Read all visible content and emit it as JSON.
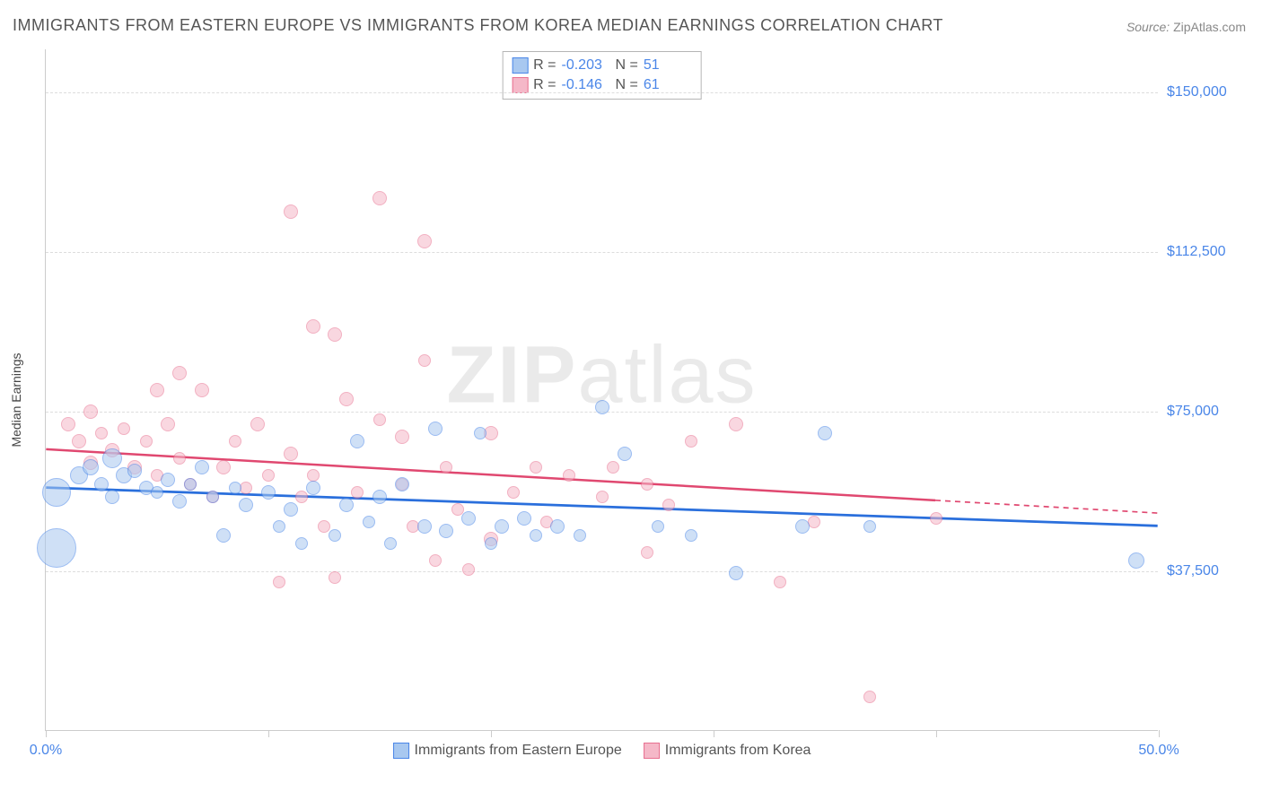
{
  "title": "IMMIGRANTS FROM EASTERN EUROPE VS IMMIGRANTS FROM KOREA MEDIAN EARNINGS CORRELATION CHART",
  "source_label": "Source:",
  "source_value": "ZipAtlas.com",
  "watermark": {
    "part1": "ZIP",
    "part2": "atlas"
  },
  "ylabel": "Median Earnings",
  "chart": {
    "type": "scatter",
    "xlim": [
      0,
      50
    ],
    "ylim": [
      0,
      160000
    ],
    "ytick_values": [
      37500,
      75000,
      112500,
      150000
    ],
    "ytick_labels": [
      "$37,500",
      "$75,000",
      "$112,500",
      "$150,000"
    ],
    "xtick_values": [
      0,
      10,
      20,
      30,
      40,
      50
    ],
    "xtick_labels": {
      "0": "0.0%",
      "50": "50.0%"
    },
    "background_color": "#ffffff",
    "grid_color": "#dddddd",
    "axis_color": "#cccccc",
    "tick_label_color": "#4a86e8"
  },
  "series": [
    {
      "name": "Immigrants from Eastern Europe",
      "fill_color": "#a8c8f0",
      "stroke_color": "#4a86e8",
      "opacity": 0.55,
      "r_label": "R =",
      "r_value": "-0.203",
      "n_label": "N =",
      "n_value": "51",
      "trend": {
        "x1": 0,
        "y1": 57000,
        "x2": 50,
        "y2": 48000,
        "solid_until": 50,
        "color": "#2a6fdc",
        "width": 2.8
      },
      "points": [
        {
          "x": 0.5,
          "y": 56000,
          "r": 16
        },
        {
          "x": 0.5,
          "y": 43000,
          "r": 22
        },
        {
          "x": 1.5,
          "y": 60000,
          "r": 10
        },
        {
          "x": 2,
          "y": 62000,
          "r": 9
        },
        {
          "x": 2.5,
          "y": 58000,
          "r": 8
        },
        {
          "x": 3,
          "y": 64000,
          "r": 11
        },
        {
          "x": 3,
          "y": 55000,
          "r": 8
        },
        {
          "x": 3.5,
          "y": 60000,
          "r": 9
        },
        {
          "x": 4,
          "y": 61000,
          "r": 8
        },
        {
          "x": 4.5,
          "y": 57000,
          "r": 8
        },
        {
          "x": 5,
          "y": 56000,
          "r": 7
        },
        {
          "x": 5.5,
          "y": 59000,
          "r": 8
        },
        {
          "x": 6,
          "y": 54000,
          "r": 8
        },
        {
          "x": 6.5,
          "y": 58000,
          "r": 7
        },
        {
          "x": 7,
          "y": 62000,
          "r": 8
        },
        {
          "x": 7.5,
          "y": 55000,
          "r": 7
        },
        {
          "x": 8,
          "y": 46000,
          "r": 8
        },
        {
          "x": 8.5,
          "y": 57000,
          "r": 7
        },
        {
          "x": 9,
          "y": 53000,
          "r": 8
        },
        {
          "x": 10,
          "y": 56000,
          "r": 8
        },
        {
          "x": 10.5,
          "y": 48000,
          "r": 7
        },
        {
          "x": 11,
          "y": 52000,
          "r": 8
        },
        {
          "x": 11.5,
          "y": 44000,
          "r": 7
        },
        {
          "x": 12,
          "y": 57000,
          "r": 8
        },
        {
          "x": 13,
          "y": 46000,
          "r": 7
        },
        {
          "x": 13.5,
          "y": 53000,
          "r": 8
        },
        {
          "x": 14,
          "y": 68000,
          "r": 8
        },
        {
          "x": 14.5,
          "y": 49000,
          "r": 7
        },
        {
          "x": 15,
          "y": 55000,
          "r": 8
        },
        {
          "x": 15.5,
          "y": 44000,
          "r": 7
        },
        {
          "x": 16,
          "y": 58000,
          "r": 8
        },
        {
          "x": 17,
          "y": 48000,
          "r": 8
        },
        {
          "x": 17.5,
          "y": 71000,
          "r": 8
        },
        {
          "x": 18,
          "y": 47000,
          "r": 8
        },
        {
          "x": 19,
          "y": 50000,
          "r": 8
        },
        {
          "x": 19.5,
          "y": 70000,
          "r": 7
        },
        {
          "x": 20,
          "y": 44000,
          "r": 7
        },
        {
          "x": 20.5,
          "y": 48000,
          "r": 8
        },
        {
          "x": 21.5,
          "y": 50000,
          "r": 8
        },
        {
          "x": 22,
          "y": 46000,
          "r": 7
        },
        {
          "x": 23,
          "y": 48000,
          "r": 8
        },
        {
          "x": 24,
          "y": 46000,
          "r": 7
        },
        {
          "x": 25,
          "y": 76000,
          "r": 8
        },
        {
          "x": 26,
          "y": 65000,
          "r": 8
        },
        {
          "x": 27.5,
          "y": 48000,
          "r": 7
        },
        {
          "x": 29,
          "y": 46000,
          "r": 7
        },
        {
          "x": 31,
          "y": 37000,
          "r": 8
        },
        {
          "x": 34,
          "y": 48000,
          "r": 8
        },
        {
          "x": 35,
          "y": 70000,
          "r": 8
        },
        {
          "x": 37,
          "y": 48000,
          "r": 7
        },
        {
          "x": 49,
          "y": 40000,
          "r": 9
        }
      ]
    },
    {
      "name": "Immigrants from Korea",
      "fill_color": "#f5b8c8",
      "stroke_color": "#e87090",
      "opacity": 0.55,
      "r_label": "R =",
      "r_value": "-0.146",
      "n_label": "N =",
      "n_value": "61",
      "trend": {
        "x1": 0,
        "y1": 66000,
        "x2": 50,
        "y2": 51000,
        "solid_until": 40,
        "color": "#e04870",
        "width": 2.5
      },
      "points": [
        {
          "x": 1,
          "y": 72000,
          "r": 8
        },
        {
          "x": 1.5,
          "y": 68000,
          "r": 8
        },
        {
          "x": 2,
          "y": 75000,
          "r": 8
        },
        {
          "x": 2,
          "y": 63000,
          "r": 8
        },
        {
          "x": 2.5,
          "y": 70000,
          "r": 7
        },
        {
          "x": 3,
          "y": 66000,
          "r": 8
        },
        {
          "x": 3.5,
          "y": 71000,
          "r": 7
        },
        {
          "x": 4,
          "y": 62000,
          "r": 8
        },
        {
          "x": 4.5,
          "y": 68000,
          "r": 7
        },
        {
          "x": 5,
          "y": 80000,
          "r": 8
        },
        {
          "x": 5,
          "y": 60000,
          "r": 7
        },
        {
          "x": 5.5,
          "y": 72000,
          "r": 8
        },
        {
          "x": 6,
          "y": 64000,
          "r": 7
        },
        {
          "x": 6,
          "y": 84000,
          "r": 8
        },
        {
          "x": 6.5,
          "y": 58000,
          "r": 7
        },
        {
          "x": 7,
          "y": 80000,
          "r": 8
        },
        {
          "x": 7.5,
          "y": 55000,
          "r": 7
        },
        {
          "x": 8,
          "y": 62000,
          "r": 8
        },
        {
          "x": 8.5,
          "y": 68000,
          "r": 7
        },
        {
          "x": 9,
          "y": 57000,
          "r": 7
        },
        {
          "x": 9.5,
          "y": 72000,
          "r": 8
        },
        {
          "x": 10,
          "y": 60000,
          "r": 7
        },
        {
          "x": 10.5,
          "y": 35000,
          "r": 7
        },
        {
          "x": 11,
          "y": 65000,
          "r": 8
        },
        {
          "x": 11,
          "y": 122000,
          "r": 8
        },
        {
          "x": 11.5,
          "y": 55000,
          "r": 7
        },
        {
          "x": 12,
          "y": 95000,
          "r": 8
        },
        {
          "x": 12,
          "y": 60000,
          "r": 7
        },
        {
          "x": 12.5,
          "y": 48000,
          "r": 7
        },
        {
          "x": 13,
          "y": 93000,
          "r": 8
        },
        {
          "x": 13,
          "y": 36000,
          "r": 7
        },
        {
          "x": 13.5,
          "y": 78000,
          "r": 8
        },
        {
          "x": 14,
          "y": 56000,
          "r": 7
        },
        {
          "x": 15,
          "y": 125000,
          "r": 8
        },
        {
          "x": 15,
          "y": 73000,
          "r": 7
        },
        {
          "x": 16,
          "y": 69000,
          "r": 8
        },
        {
          "x": 16,
          "y": 58000,
          "r": 7
        },
        {
          "x": 16.5,
          "y": 48000,
          "r": 7
        },
        {
          "x": 17,
          "y": 115000,
          "r": 8
        },
        {
          "x": 17,
          "y": 87000,
          "r": 7
        },
        {
          "x": 17.5,
          "y": 40000,
          "r": 7
        },
        {
          "x": 18,
          "y": 62000,
          "r": 7
        },
        {
          "x": 18.5,
          "y": 52000,
          "r": 7
        },
        {
          "x": 19,
          "y": 38000,
          "r": 7
        },
        {
          "x": 20,
          "y": 70000,
          "r": 8
        },
        {
          "x": 20,
          "y": 45000,
          "r": 8
        },
        {
          "x": 21,
          "y": 56000,
          "r": 7
        },
        {
          "x": 22,
          "y": 62000,
          "r": 7
        },
        {
          "x": 22.5,
          "y": 49000,
          "r": 7
        },
        {
          "x": 23.5,
          "y": 60000,
          "r": 7
        },
        {
          "x": 25,
          "y": 55000,
          "r": 7
        },
        {
          "x": 25.5,
          "y": 62000,
          "r": 7
        },
        {
          "x": 27,
          "y": 58000,
          "r": 7
        },
        {
          "x": 27,
          "y": 42000,
          "r": 7
        },
        {
          "x": 28,
          "y": 53000,
          "r": 7
        },
        {
          "x": 29,
          "y": 68000,
          "r": 7
        },
        {
          "x": 31,
          "y": 72000,
          "r": 8
        },
        {
          "x": 33,
          "y": 35000,
          "r": 7
        },
        {
          "x": 34.5,
          "y": 49000,
          "r": 7
        },
        {
          "x": 37,
          "y": 8000,
          "r": 7
        },
        {
          "x": 40,
          "y": 50000,
          "r": 7
        }
      ]
    }
  ]
}
